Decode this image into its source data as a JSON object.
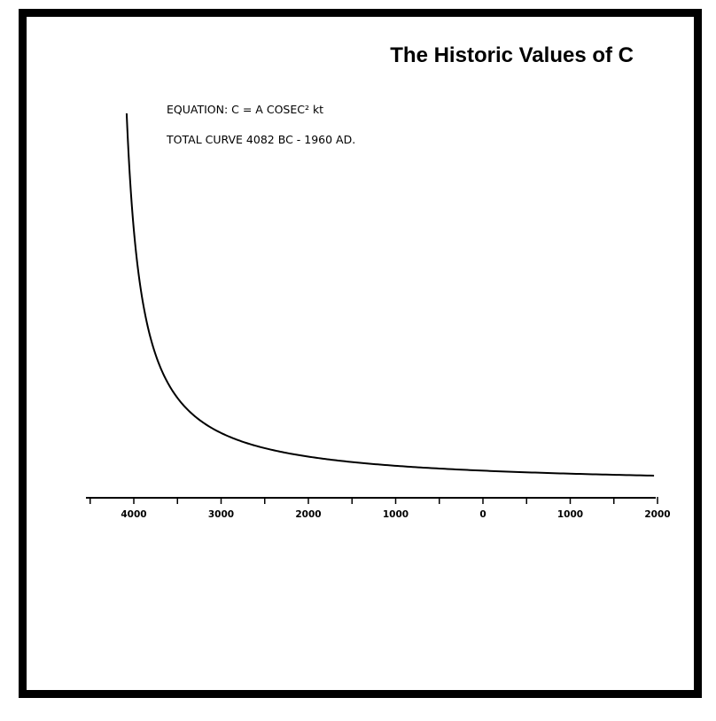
{
  "colors": {
    "frame": "#000000",
    "background": "#ffffff",
    "curve": "#000000"
  },
  "chart_data": {
    "type": "line",
    "title": "The Historic Values of C",
    "annotations": {
      "equation": "EQUATION:  C = A COSEC² kt",
      "total_curve": "TOTAL CURVE 4082 BC - 1960 AD."
    },
    "xlabel": "",
    "ylabel": "",
    "x_axis": {
      "direction": "BC to AD (left to right)",
      "tick_labels": [
        "4000",
        "3000",
        "2000",
        "1000",
        "0",
        "1000",
        "2000"
      ],
      "tick_years": [
        -4000,
        -3000,
        -2000,
        -1000,
        0,
        1000,
        2000
      ],
      "range_years": [
        -4500,
        2000
      ]
    },
    "grid": false,
    "series": [
      {
        "name": "C",
        "equation": "C = A cosec^2(kt)",
        "start_year": -4082,
        "end_year": 1960,
        "relative_values": {
          "x_years": [
            -4082,
            -4060,
            -4000,
            -3900,
            -3800,
            -3600,
            -3400,
            -3000,
            -2500,
            -2000,
            -1500,
            -1000,
            -500,
            0,
            500,
            1000,
            1500,
            1960
          ],
          "y_relative": [
            1.0,
            0.72,
            0.42,
            0.3,
            0.25,
            0.2,
            0.175,
            0.14,
            0.11,
            0.085,
            0.065,
            0.05,
            0.036,
            0.025,
            0.017,
            0.011,
            0.006,
            0.003
          ]
        }
      }
    ]
  }
}
